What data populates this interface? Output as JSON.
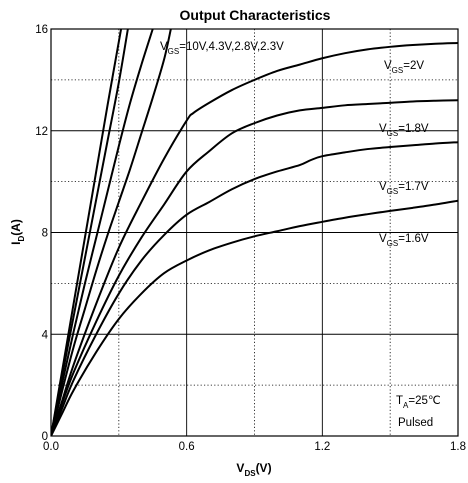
{
  "chart_data": {
    "type": "line",
    "title": "Output Characteristics",
    "xlabel": {
      "main": "V",
      "sub": "DS",
      "tail": "(V)"
    },
    "ylabel": {
      "main": "I",
      "sub": "D",
      "tail": "(A)"
    },
    "xlim": [
      0,
      1.8
    ],
    "ylim": [
      0,
      16
    ],
    "xticks": [
      0,
      0.6,
      1.2,
      1.8
    ],
    "xtick_labels": [
      "0.0",
      "0.6",
      "1.2",
      "1.8"
    ],
    "yticks": [
      0,
      4,
      8,
      12,
      16
    ],
    "ytick_labels": [
      "0",
      "4",
      "8",
      "12",
      "16"
    ],
    "grid": "major solid, minor dotted",
    "series": [
      {
        "name": "VGS=10V",
        "x": [
          0,
          0.05,
          0.1,
          0.15,
          0.2,
          0.25,
          0.31
        ],
        "y": [
          0,
          2.6,
          5.2,
          7.8,
          10.4,
          13.0,
          16
        ]
      },
      {
        "name": "VGS=4.3V",
        "x": [
          0,
          0.05,
          0.1,
          0.15,
          0.2,
          0.25,
          0.3,
          0.34
        ],
        "y": [
          0,
          2.4,
          4.7,
          7.0,
          9.3,
          11.6,
          13.9,
          16
        ]
      },
      {
        "name": "VGS=2.8V",
        "x": [
          0,
          0.05,
          0.1,
          0.15,
          0.2,
          0.25,
          0.3,
          0.35,
          0.4,
          0.45
        ],
        "y": [
          0,
          2.1,
          4.1,
          6.0,
          7.8,
          9.6,
          11.4,
          13.1,
          14.6,
          16
        ]
      },
      {
        "name": "VGS=2.3V",
        "x": [
          0,
          0.05,
          0.1,
          0.15,
          0.2,
          0.25,
          0.3,
          0.35,
          0.4,
          0.45,
          0.5,
          0.53
        ],
        "y": [
          0,
          1.8,
          3.5,
          5.0,
          6.5,
          7.9,
          9.2,
          10.5,
          11.9,
          13.3,
          14.8,
          16
        ]
      },
      {
        "name": "VGS=2V",
        "x": [
          0,
          0.05,
          0.1,
          0.2,
          0.3,
          0.4,
          0.5,
          0.6,
          0.63,
          0.7,
          0.8,
          0.9,
          1.0,
          1.1,
          1.2,
          1.3,
          1.4,
          1.5,
          1.6,
          1.7,
          1.8
        ],
        "y": [
          0,
          1.4,
          2.8,
          5.2,
          7.4,
          9.2,
          10.9,
          12.4,
          12.7,
          13.1,
          13.6,
          14.0,
          14.35,
          14.6,
          14.85,
          15.05,
          15.2,
          15.3,
          15.37,
          15.42,
          15.45
        ]
      },
      {
        "name": "VGS=1.8V",
        "x": [
          0,
          0.05,
          0.1,
          0.2,
          0.3,
          0.4,
          0.5,
          0.6,
          0.7,
          0.8,
          0.9,
          1.0,
          1.1,
          1.2,
          1.3,
          1.4,
          1.5,
          1.6,
          1.7,
          1.8
        ],
        "y": [
          0,
          1.3,
          2.5,
          4.5,
          6.3,
          7.8,
          9.1,
          10.4,
          11.2,
          11.9,
          12.3,
          12.6,
          12.8,
          12.9,
          13.0,
          13.05,
          13.1,
          13.15,
          13.18,
          13.2
        ]
      },
      {
        "name": "VGS=1.7V",
        "x": [
          0,
          0.05,
          0.1,
          0.2,
          0.3,
          0.4,
          0.5,
          0.6,
          0.7,
          0.8,
          0.9,
          1.0,
          1.1,
          1.15,
          1.2,
          1.3,
          1.4,
          1.5,
          1.6,
          1.7,
          1.8
        ],
        "y": [
          0,
          1.1,
          2.2,
          4.0,
          5.6,
          6.9,
          7.9,
          8.7,
          9.2,
          9.7,
          10.1,
          10.4,
          10.65,
          10.85,
          11.0,
          11.15,
          11.28,
          11.36,
          11.43,
          11.5,
          11.55
        ]
      },
      {
        "name": "VGS=1.6V",
        "x": [
          0,
          0.05,
          0.1,
          0.2,
          0.3,
          0.4,
          0.5,
          0.6,
          0.7,
          0.8,
          0.9,
          1.0,
          1.1,
          1.2,
          1.3,
          1.4,
          1.5,
          1.6,
          1.7,
          1.8
        ],
        "y": [
          0,
          0.9,
          1.8,
          3.3,
          4.6,
          5.6,
          6.4,
          6.9,
          7.3,
          7.6,
          7.85,
          8.05,
          8.25,
          8.42,
          8.58,
          8.72,
          8.85,
          8.97,
          9.1,
          9.25
        ]
      }
    ],
    "annotations": [
      {
        "id": "vgs-group",
        "main": "V",
        "sub": "GS",
        "tail": "=10V,4.3V,2.8V,2.3V"
      },
      {
        "id": "vgs-2",
        "main": "V",
        "sub": "GS",
        "tail": "=2V"
      },
      {
        "id": "vgs-1-8",
        "main": "V",
        "sub": "GS",
        "tail": "=1.8V"
      },
      {
        "id": "vgs-1-7",
        "main": "V",
        "sub": "GS",
        "tail": "=1.7V"
      },
      {
        "id": "vgs-1-6",
        "main": "V",
        "sub": "GS",
        "tail": "=1.6V"
      },
      {
        "id": "ta",
        "main": "T",
        "sub": "A",
        "tail": "=25℃"
      },
      {
        "id": "pulsed",
        "main": "Pulsed",
        "sub": "",
        "tail": ""
      }
    ]
  }
}
